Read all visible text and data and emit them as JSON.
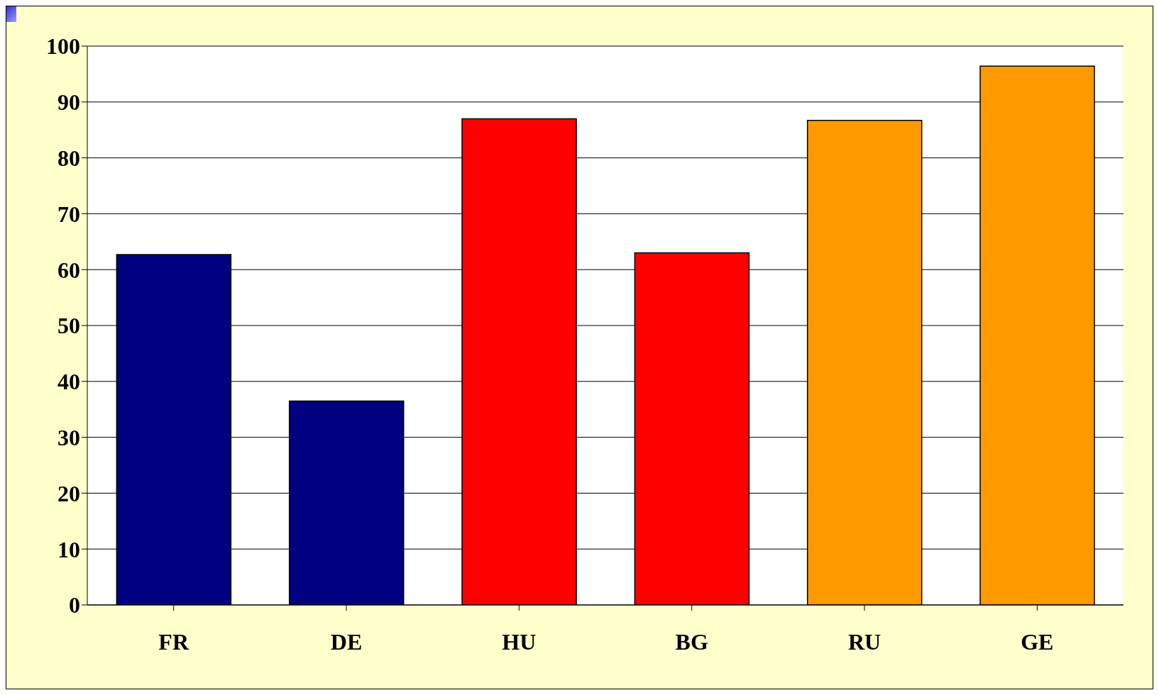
{
  "chart_data": {
    "type": "bar",
    "categories": [
      "FR",
      "DE",
      "HU",
      "BG",
      "RU",
      "GE"
    ],
    "values": [
      62.7,
      36.5,
      87.0,
      63.0,
      86.7,
      96.4
    ],
    "colors": [
      "#000080",
      "#000080",
      "#ff0000",
      "#ff0000",
      "#ff9900",
      "#ff9900"
    ],
    "ylim": [
      0,
      100
    ],
    "yticks": [
      0,
      10,
      20,
      30,
      40,
      50,
      60,
      70,
      80,
      90,
      100
    ],
    "grid": "y"
  }
}
